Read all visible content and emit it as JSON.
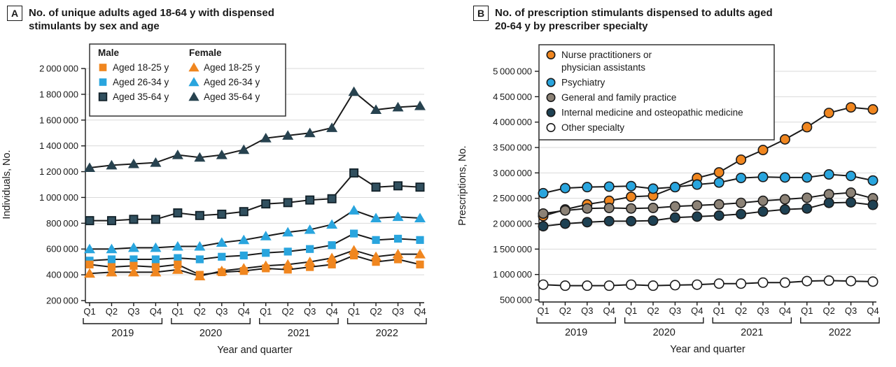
{
  "colors": {
    "orange": "#F0861F",
    "blue": "#29A5DE",
    "navy_fill": "#31505F",
    "navy_dark": "#122129",
    "navy_solid": "#27424F",
    "navy_circle": "#1E4153",
    "gray": "#8C8276",
    "white": "#FFFFFF",
    "line": "#1A1A1A",
    "grid": "#D9D9D9",
    "text": "#1A1A1A"
  },
  "chart_data": [
    {
      "panel_label": "A",
      "type": "line",
      "title_lines": [
        "No. of unique adults aged 18-64 y with dispensed",
        "stimulants by sex and age"
      ],
      "ylabel": "Individuals, No.",
      "xlabel": "Year and quarter",
      "ylim": [
        200000,
        2000000
      ],
      "ytick_step": 200000,
      "ytick_labels": [
        "200 000",
        "400 000",
        "600 000",
        "800 000",
        "1 000 000",
        "1 200 000",
        "1 400 000",
        "1 600 000",
        "1 800 000",
        "2 000 000"
      ],
      "x_categories": [
        "Q1",
        "Q2",
        "Q3",
        "Q4",
        "Q1",
        "Q2",
        "Q3",
        "Q4",
        "Q1",
        "Q2",
        "Q3",
        "Q4",
        "Q1",
        "Q2",
        "Q3",
        "Q4"
      ],
      "year_groups": [
        "2019",
        "2020",
        "2021",
        "2022"
      ],
      "grid": true,
      "legend": {
        "position": "top-left",
        "columns": [
          {
            "header": "Male",
            "marker": "square",
            "items": [
              {
                "label": "Aged 18-25 y",
                "fill": "#F0861F"
              },
              {
                "label": "Aged 26-34 y",
                "fill": "#29A5DE"
              },
              {
                "label": "Aged 35-64 y",
                "fill": "#31505F",
                "stroke": "#122129"
              }
            ]
          },
          {
            "header": "Female",
            "marker": "triangle",
            "items": [
              {
                "label": "Aged 18-25 y",
                "fill": "#F0861F"
              },
              {
                "label": "Aged 26-34 y",
                "fill": "#29A5DE"
              },
              {
                "label": "Aged 35-64 y",
                "fill": "#27424F"
              }
            ]
          }
        ]
      },
      "series": [
        {
          "id": "female-35-64",
          "name": "Female aged 35-64 y",
          "marker": "triangle",
          "fill": "#27424F",
          "values": [
            1230000,
            1250000,
            1260000,
            1270000,
            1330000,
            1310000,
            1330000,
            1370000,
            1460000,
            1480000,
            1500000,
            1540000,
            1820000,
            1680000,
            1700000,
            1710000
          ]
        },
        {
          "id": "male-35-64",
          "name": "Male aged 35-64 y",
          "marker": "square",
          "fill": "#31505F",
          "stroke": "#122129",
          "values": [
            820000,
            820000,
            830000,
            830000,
            880000,
            860000,
            870000,
            890000,
            950000,
            960000,
            980000,
            990000,
            1190000,
            1080000,
            1090000,
            1080000
          ]
        },
        {
          "id": "female-26-34",
          "name": "Female aged 26-34 y",
          "marker": "triangle",
          "fill": "#29A5DE",
          "values": [
            600000,
            600000,
            610000,
            610000,
            620000,
            620000,
            650000,
            670000,
            700000,
            730000,
            750000,
            790000,
            900000,
            840000,
            850000,
            840000
          ]
        },
        {
          "id": "male-26-34",
          "name": "Male aged 26-34 y",
          "marker": "square",
          "fill": "#29A5DE",
          "values": [
            510000,
            520000,
            520000,
            520000,
            530000,
            520000,
            540000,
            550000,
            570000,
            580000,
            600000,
            630000,
            720000,
            670000,
            680000,
            670000
          ]
        },
        {
          "id": "female-18-25",
          "name": "Female aged 18-25 y",
          "marker": "triangle",
          "fill": "#F0861F",
          "values": [
            410000,
            420000,
            420000,
            420000,
            440000,
            390000,
            430000,
            450000,
            470000,
            480000,
            500000,
            530000,
            590000,
            540000,
            560000,
            560000
          ]
        },
        {
          "id": "male-18-25",
          "name": "Male aged 18-25 y",
          "marker": "square",
          "fill": "#F0861F",
          "values": [
            480000,
            460000,
            470000,
            460000,
            480000,
            400000,
            420000,
            430000,
            450000,
            440000,
            460000,
            480000,
            550000,
            500000,
            520000,
            480000
          ]
        }
      ]
    },
    {
      "panel_label": "B",
      "type": "line",
      "title_lines": [
        "No. of prescription stimulants dispensed to adults aged",
        "20-64 y by prescriber specialty"
      ],
      "ylabel": "Prescriptions, No.",
      "xlabel": "Year and quarter",
      "ylim": [
        500000,
        5000000
      ],
      "ytick_step": 500000,
      "ytick_labels": [
        "500 000",
        "1 000 000",
        "1 500 000",
        "2 000 000",
        "2 500 000",
        "3 000 000",
        "3 500 000",
        "4 000 000",
        "4 500 000",
        "5 000 000"
      ],
      "x_categories": [
        "Q1",
        "Q2",
        "Q3",
        "Q4",
        "Q1",
        "Q2",
        "Q3",
        "Q4",
        "Q1",
        "Q2",
        "Q3",
        "Q4",
        "Q1",
        "Q2",
        "Q3",
        "Q4"
      ],
      "year_groups": [
        "2019",
        "2020",
        "2021",
        "2022"
      ],
      "grid": true,
      "legend": {
        "position": "top-left",
        "items": [
          {
            "lines": [
              "Nurse practitioners or",
              "physician assistants"
            ],
            "fill": "#F0861F"
          },
          {
            "lines": [
              "Psychiatry"
            ],
            "fill": "#29A5DE"
          },
          {
            "lines": [
              "General and family practice"
            ],
            "fill": "#8C8276"
          },
          {
            "lines": [
              "Internal medicine and osteopathic medicine"
            ],
            "fill": "#1E4153"
          },
          {
            "lines": [
              "Other specialty"
            ],
            "fill": "#FFFFFF"
          }
        ]
      },
      "series": [
        {
          "id": "nppa",
          "name": "Nurse practitioners or physician assistants",
          "marker": "circle",
          "fill": "#F0861F",
          "stroke": "#1A1A1A",
          "values": [
            2150000,
            2280000,
            2380000,
            2450000,
            2530000,
            2550000,
            2720000,
            2900000,
            3010000,
            3260000,
            3450000,
            3660000,
            3900000,
            4180000,
            4290000,
            4250000
          ]
        },
        {
          "id": "general-family",
          "name": "General and family practice",
          "marker": "circle",
          "fill": "#8C8276",
          "stroke": "#1A1A1A",
          "values": [
            2200000,
            2260000,
            2300000,
            2310000,
            2300000,
            2310000,
            2340000,
            2360000,
            2380000,
            2410000,
            2450000,
            2480000,
            2510000,
            2580000,
            2610000,
            2500000
          ]
        },
        {
          "id": "internal-medicine",
          "name": "Internal medicine and osteopathic medicine",
          "marker": "circle",
          "fill": "#1E4153",
          "stroke": "#1A1A1A",
          "values": [
            1950000,
            2000000,
            2030000,
            2050000,
            2050000,
            2060000,
            2120000,
            2140000,
            2160000,
            2190000,
            2240000,
            2280000,
            2300000,
            2410000,
            2420000,
            2370000
          ]
        },
        {
          "id": "psychiatry",
          "name": "Psychiatry",
          "marker": "circle",
          "fill": "#29A5DE",
          "stroke": "#1A1A1A",
          "values": [
            2600000,
            2700000,
            2720000,
            2730000,
            2740000,
            2690000,
            2720000,
            2770000,
            2810000,
            2900000,
            2920000,
            2910000,
            2910000,
            2970000,
            2940000,
            2850000
          ]
        },
        {
          "id": "other-specialty",
          "name": "Other specialty",
          "marker": "circle",
          "fill": "#FFFFFF",
          "stroke": "#1A1A1A",
          "values": [
            800000,
            780000,
            780000,
            780000,
            800000,
            780000,
            790000,
            800000,
            820000,
            820000,
            840000,
            840000,
            870000,
            880000,
            870000,
            860000
          ]
        }
      ]
    }
  ]
}
